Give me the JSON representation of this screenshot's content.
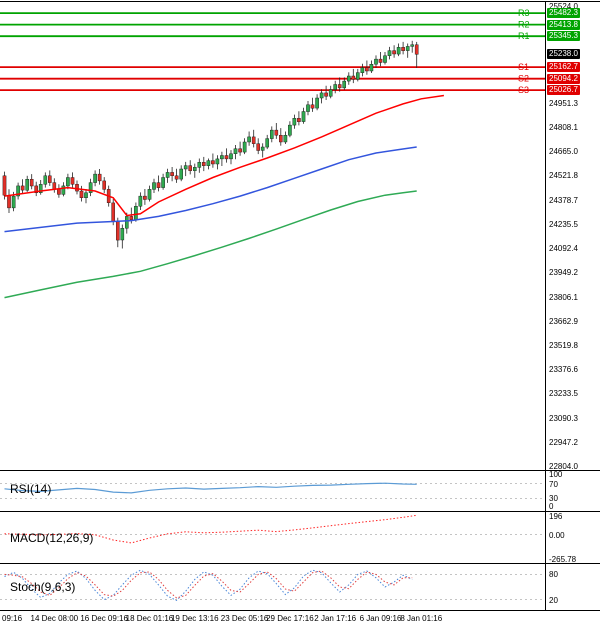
{
  "chart_data": {
    "type": "candlestick",
    "title": "",
    "price_axis": {
      "max": 25524.0,
      "min": 22804.0,
      "max_label": "25524.0",
      "min_label": "22804.0",
      "tick_labels": [
        "24951.3",
        "24808.1",
        "24665.0",
        "24521.8",
        "24378.7",
        "24235.5",
        "24092.4",
        "23949.2",
        "23806.1",
        "23662.9",
        "23519.8",
        "23376.6",
        "23233.5",
        "23090.3",
        "22947.2"
      ]
    },
    "x_axis": {
      "ticks": [
        {
          "label": "09:16",
          "i": 0
        },
        {
          "label": "14 Dec 08:00",
          "i": 11
        },
        {
          "label": "16 Dec 09:16",
          "i": 22
        },
        {
          "label": "18 Dec 01:16",
          "i": 32
        },
        {
          "label": "19 Dec 13:16",
          "i": 42
        },
        {
          "label": "23 Dec 05:16",
          "i": 53
        },
        {
          "label": "29 Dec 17:16",
          "i": 63
        },
        {
          "label": "2 Jan 17:16",
          "i": 73
        },
        {
          "label": "6 Jan 09:16",
          "i": 83
        },
        {
          "label": "8 Jan 01:16",
          "i": 92
        }
      ]
    },
    "colors": {
      "up": "#2fa84f",
      "down": "#e03028",
      "wick": "#222222",
      "ma_fast": "#ff0000",
      "ma_mid": "#3355dd",
      "ma_slow": "#2faa55",
      "resistance": "#00a400",
      "support": "#e00000",
      "current": "#000000",
      "rsi": "#5b9bd5",
      "macd": "#ff2222",
      "stoch_k": "#4a86d8",
      "stoch_d": "#e04040",
      "guide": "#b0b0b0"
    },
    "overlays": {
      "pivot_resistance": [
        {
          "name": "R3",
          "value": 25482.3,
          "label": "25482.3"
        },
        {
          "name": "R2",
          "value": 25413.8,
          "label": "25413.8"
        },
        {
          "name": "R1",
          "value": 25345.3,
          "label": "25345.3"
        }
      ],
      "pivot_support": [
        {
          "name": "S1",
          "value": 25162.7,
          "label": "25162.7"
        },
        {
          "name": "S2",
          "value": 25094.2,
          "label": "25094.2"
        },
        {
          "name": "S3",
          "value": 25026.7,
          "label": "25026.7"
        }
      ],
      "current_price": {
        "value": 25238.0,
        "label": "25238.0"
      },
      "ma": [
        {
          "name": "ma-slow",
          "color_key": "ma_slow",
          "points": [
            [
              0,
              23800
            ],
            [
              8,
              23845
            ],
            [
              16,
              23890
            ],
            [
              24,
              23925
            ],
            [
              30,
              23955
            ],
            [
              36,
              24000
            ],
            [
              42,
              24048
            ],
            [
              48,
              24098
            ],
            [
              54,
              24150
            ],
            [
              60,
              24205
            ],
            [
              66,
              24262
            ],
            [
              72,
              24318
            ],
            [
              78,
              24368
            ],
            [
              84,
              24405
            ],
            [
              88,
              24420
            ],
            [
              91,
              24430
            ]
          ]
        },
        {
          "name": "ma-mid",
          "color_key": "ma_mid",
          "points": [
            [
              0,
              24190
            ],
            [
              8,
              24215
            ],
            [
              16,
              24240
            ],
            [
              24,
              24250
            ],
            [
              28,
              24255
            ],
            [
              34,
              24280
            ],
            [
              40,
              24315
            ],
            [
              46,
              24355
            ],
            [
              52,
              24400
            ],
            [
              58,
              24450
            ],
            [
              64,
              24505
            ],
            [
              70,
              24560
            ],
            [
              76,
              24615
            ],
            [
              82,
              24655
            ],
            [
              87,
              24675
            ],
            [
              91,
              24690
            ]
          ]
        },
        {
          "name": "ma-fast",
          "color_key": "ma_fast",
          "points": [
            [
              0,
              24400
            ],
            [
              8,
              24430
            ],
            [
              14,
              24450
            ],
            [
              20,
              24430
            ],
            [
              24,
              24390
            ],
            [
              27,
              24285
            ],
            [
              30,
              24295
            ],
            [
              34,
              24365
            ],
            [
              40,
              24440
            ],
            [
              46,
              24510
            ],
            [
              52,
              24570
            ],
            [
              58,
              24625
            ],
            [
              64,
              24685
            ],
            [
              70,
              24750
            ],
            [
              76,
              24820
            ],
            [
              82,
              24890
            ],
            [
              88,
              24945
            ],
            [
              92,
              24975
            ],
            [
              97,
              24995
            ]
          ]
        }
      ]
    },
    "candles": [
      [
        24520,
        24545,
        24380,
        24405
      ],
      [
        24405,
        24440,
        24300,
        24330
      ],
      [
        24330,
        24425,
        24310,
        24400
      ],
      [
        24400,
        24480,
        24380,
        24460
      ],
      [
        24460,
        24500,
        24415,
        24435
      ],
      [
        24435,
        24520,
        24425,
        24500
      ],
      [
        24500,
        24530,
        24440,
        24460
      ],
      [
        24460,
        24485,
        24400,
        24420
      ],
      [
        24420,
        24495,
        24408,
        24470
      ],
      [
        24470,
        24540,
        24450,
        24520
      ],
      [
        24520,
        24552,
        24460,
        24480
      ],
      [
        24480,
        24505,
        24420,
        24440
      ],
      [
        24440,
        24470,
        24390,
        24410
      ],
      [
        24410,
        24482,
        24398,
        24460
      ],
      [
        24460,
        24532,
        24440,
        24510
      ],
      [
        24510,
        24540,
        24448,
        24470
      ],
      [
        24470,
        24492,
        24410,
        24430
      ],
      [
        24430,
        24460,
        24368,
        24390
      ],
      [
        24390,
        24442,
        24358,
        24420
      ],
      [
        24420,
        24502,
        24400,
        24480
      ],
      [
        24480,
        24552,
        24458,
        24530
      ],
      [
        24530,
        24560,
        24468,
        24490
      ],
      [
        24490,
        24512,
        24418,
        24440
      ],
      [
        24440,
        24462,
        24338,
        24360
      ],
      [
        24360,
        24382,
        24228,
        24250
      ],
      [
        24250,
        24272,
        24098,
        24140
      ],
      [
        24140,
        24232,
        24090,
        24210
      ],
      [
        24210,
        24302,
        24178,
        24280
      ],
      [
        24280,
        24332,
        24238,
        24260
      ],
      [
        24260,
        24362,
        24248,
        24340
      ],
      [
        24340,
        24422,
        24318,
        24400
      ],
      [
        24400,
        24442,
        24348,
        24380
      ],
      [
        24380,
        24462,
        24368,
        24440
      ],
      [
        24440,
        24502,
        24418,
        24480
      ],
      [
        24480,
        24522,
        24428,
        24450
      ],
      [
        24450,
        24532,
        24438,
        24510
      ],
      [
        24510,
        24562,
        24478,
        24540
      ],
      [
        24540,
        24572,
        24488,
        24520
      ],
      [
        24520,
        24562,
        24478,
        24500
      ],
      [
        24500,
        24582,
        24488,
        24560
      ],
      [
        24560,
        24602,
        24518,
        24580
      ],
      [
        24580,
        24612,
        24528,
        24550
      ],
      [
        24550,
        24592,
        24508,
        24570
      ],
      [
        24570,
        24622,
        24538,
        24600
      ],
      [
        24600,
        24632,
        24548,
        24580
      ],
      [
        24580,
        24622,
        24558,
        24610
      ],
      [
        24610,
        24652,
        24568,
        24590
      ],
      [
        24590,
        24642,
        24558,
        24620
      ],
      [
        24620,
        24662,
        24578,
        24640
      ],
      [
        24640,
        24682,
        24598,
        24620
      ],
      [
        24620,
        24672,
        24588,
        24650
      ],
      [
        24650,
        24702,
        24618,
        24680
      ],
      [
        24680,
        24722,
        24638,
        24660
      ],
      [
        24660,
        24742,
        24648,
        24720
      ],
      [
        24720,
        24782,
        24698,
        24750
      ],
      [
        24750,
        24792,
        24688,
        24710
      ],
      [
        24710,
        24742,
        24648,
        24670
      ],
      [
        24670,
        24712,
        24628,
        24690
      ],
      [
        24690,
        24762,
        24678,
        24740
      ],
      [
        24740,
        24812,
        24718,
        24790
      ],
      [
        24790,
        24832,
        24738,
        24760
      ],
      [
        24760,
        24802,
        24698,
        24720
      ],
      [
        24720,
        24782,
        24708,
        24760
      ],
      [
        24760,
        24842,
        24748,
        24820
      ],
      [
        24820,
        24882,
        24798,
        24860
      ],
      [
        24860,
        24902,
        24818,
        24840
      ],
      [
        24840,
        24922,
        24828,
        24900
      ],
      [
        24900,
        24962,
        24878,
        24940
      ],
      [
        24940,
        24982,
        24898,
        24920
      ],
      [
        24920,
        25002,
        24908,
        24980
      ],
      [
        24980,
        25032,
        24948,
        25010
      ],
      [
        25010,
        25052,
        24968,
        24990
      ],
      [
        24990,
        25052,
        24978,
        25030
      ],
      [
        25030,
        25082,
        25008,
        25060
      ],
      [
        25060,
        25102,
        25018,
        25040
      ],
      [
        25040,
        25102,
        25028,
        25080
      ],
      [
        25080,
        25132,
        25058,
        25110
      ],
      [
        25110,
        25152,
        25068,
        25090
      ],
      [
        25090,
        25152,
        25078,
        25130
      ],
      [
        25130,
        25182,
        25108,
        25160
      ],
      [
        25160,
        25202,
        25118,
        25140
      ],
      [
        25140,
        25202,
        25128,
        25180
      ],
      [
        25180,
        25232,
        25158,
        25210
      ],
      [
        25210,
        25252,
        25168,
        25190
      ],
      [
        25190,
        25252,
        25178,
        25230
      ],
      [
        25230,
        25282,
        25208,
        25260
      ],
      [
        25260,
        25292,
        25218,
        25240
      ],
      [
        25240,
        25302,
        25228,
        25280
      ],
      [
        25280,
        25312,
        25238,
        25260
      ],
      [
        25260,
        25302,
        25218,
        25285
      ],
      [
        25285,
        25318,
        25248,
        25295
      ],
      [
        25295,
        25312,
        25158,
        25238
      ]
    ],
    "indicators": {
      "rsi": {
        "name": "RSI(14)",
        "range": [
          0,
          100
        ],
        "guides": [
          70,
          30
        ],
        "axis_labels": [
          "100",
          "70",
          "30",
          "0"
        ],
        "points": [
          [
            0,
            56
          ],
          [
            4,
            51
          ],
          [
            8,
            49
          ],
          [
            12,
            53
          ],
          [
            16,
            57
          ],
          [
            20,
            54
          ],
          [
            24,
            47
          ],
          [
            28,
            45
          ],
          [
            32,
            52
          ],
          [
            36,
            56
          ],
          [
            40,
            58
          ],
          [
            44,
            55
          ],
          [
            48,
            57
          ],
          [
            52,
            59
          ],
          [
            56,
            62
          ],
          [
            60,
            60
          ],
          [
            64,
            63
          ],
          [
            68,
            65
          ],
          [
            72,
            66
          ],
          [
            76,
            68
          ],
          [
            80,
            70
          ],
          [
            84,
            71
          ],
          [
            88,
            69
          ],
          [
            91,
            68
          ]
        ]
      },
      "macd": {
        "name": "MACD(12,26,9)",
        "range": [
          -290,
          230
        ],
        "axis_labels": [
          "196",
          "0.00",
          "-265.78"
        ],
        "points": [
          [
            0,
            8
          ],
          [
            4,
            4
          ],
          [
            8,
            -4
          ],
          [
            12,
            2
          ],
          [
            16,
            10
          ],
          [
            20,
            -2
          ],
          [
            24,
            -55
          ],
          [
            28,
            -85
          ],
          [
            32,
            -35
          ],
          [
            36,
            8
          ],
          [
            40,
            28
          ],
          [
            44,
            18
          ],
          [
            48,
            24
          ],
          [
            52,
            34
          ],
          [
            56,
            44
          ],
          [
            60,
            30
          ],
          [
            64,
            48
          ],
          [
            68,
            68
          ],
          [
            72,
            90
          ],
          [
            76,
            112
          ],
          [
            80,
            132
          ],
          [
            84,
            152
          ],
          [
            88,
            176
          ],
          [
            91,
            196
          ]
        ]
      },
      "stoch": {
        "name": "Stoch(9,6,3)",
        "range": [
          0,
          100
        ],
        "guides": [
          80,
          20
        ],
        "axis_labels": [
          "80",
          "20"
        ],
        "step": 2,
        "k_values": [
          75,
          85,
          70,
          45,
          25,
          35,
          60,
          80,
          88,
          70,
          42,
          20,
          30,
          55,
          78,
          90,
          80,
          55,
          28,
          18,
          40,
          68,
          86,
          78,
          52,
          30,
          45,
          72,
          88,
          82,
          58,
          32,
          48,
          76,
          90,
          84,
          60,
          38,
          55,
          80,
          88,
          72,
          50,
          62,
          78,
          68
        ],
        "d_values": [
          80,
          78,
          74,
          58,
          38,
          30,
          48,
          70,
          84,
          76,
          55,
          32,
          28,
          42,
          66,
          84,
          86,
          68,
          42,
          24,
          30,
          54,
          76,
          82,
          64,
          42,
          38,
          58,
          80,
          86,
          70,
          45,
          40,
          62,
          84,
          88,
          72,
          50,
          46,
          68,
          86,
          80,
          62,
          55,
          72,
          72
        ]
      }
    }
  }
}
